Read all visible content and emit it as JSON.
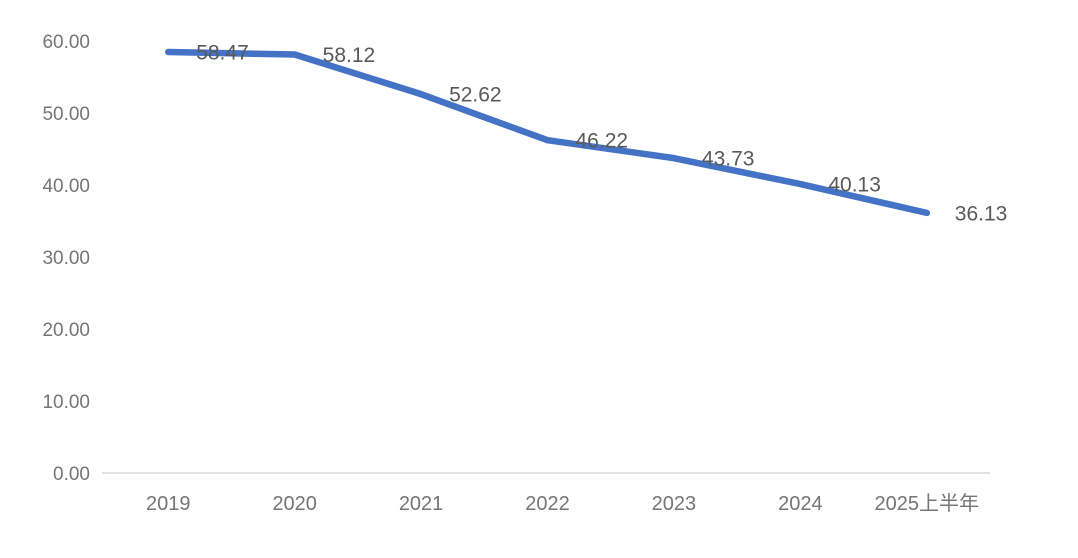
{
  "chart_data": {
    "type": "line",
    "title": "",
    "categories": [
      "2019",
      "2020",
      "2021",
      "2022",
      "2023",
      "2024",
      "2025上半年"
    ],
    "series": [
      {
        "name": "",
        "values": [
          58.47,
          58.12,
          52.62,
          46.22,
          43.73,
          40.13,
          36.13
        ],
        "data_labels": [
          "58.47",
          "58.12",
          "52.62",
          "46.22",
          "43.73",
          "40.13",
          "36.13"
        ],
        "color": "#4472C4"
      }
    ],
    "xlabel": "",
    "ylabel": "",
    "ylim": [
      0,
      60
    ],
    "ytick_interval": 10,
    "ytick_labels": [
      "0.00",
      "10.00",
      "20.00",
      "30.00",
      "40.00",
      "50.00",
      "60.00"
    ],
    "grid": false,
    "legend_position": "none",
    "data_label_position": "right",
    "colors": {
      "line": "#4472C4",
      "axis_text": "#757575",
      "data_label_text": "#595959",
      "axis_line": "#D9D9D9",
      "background": "#FFFFFF"
    }
  }
}
